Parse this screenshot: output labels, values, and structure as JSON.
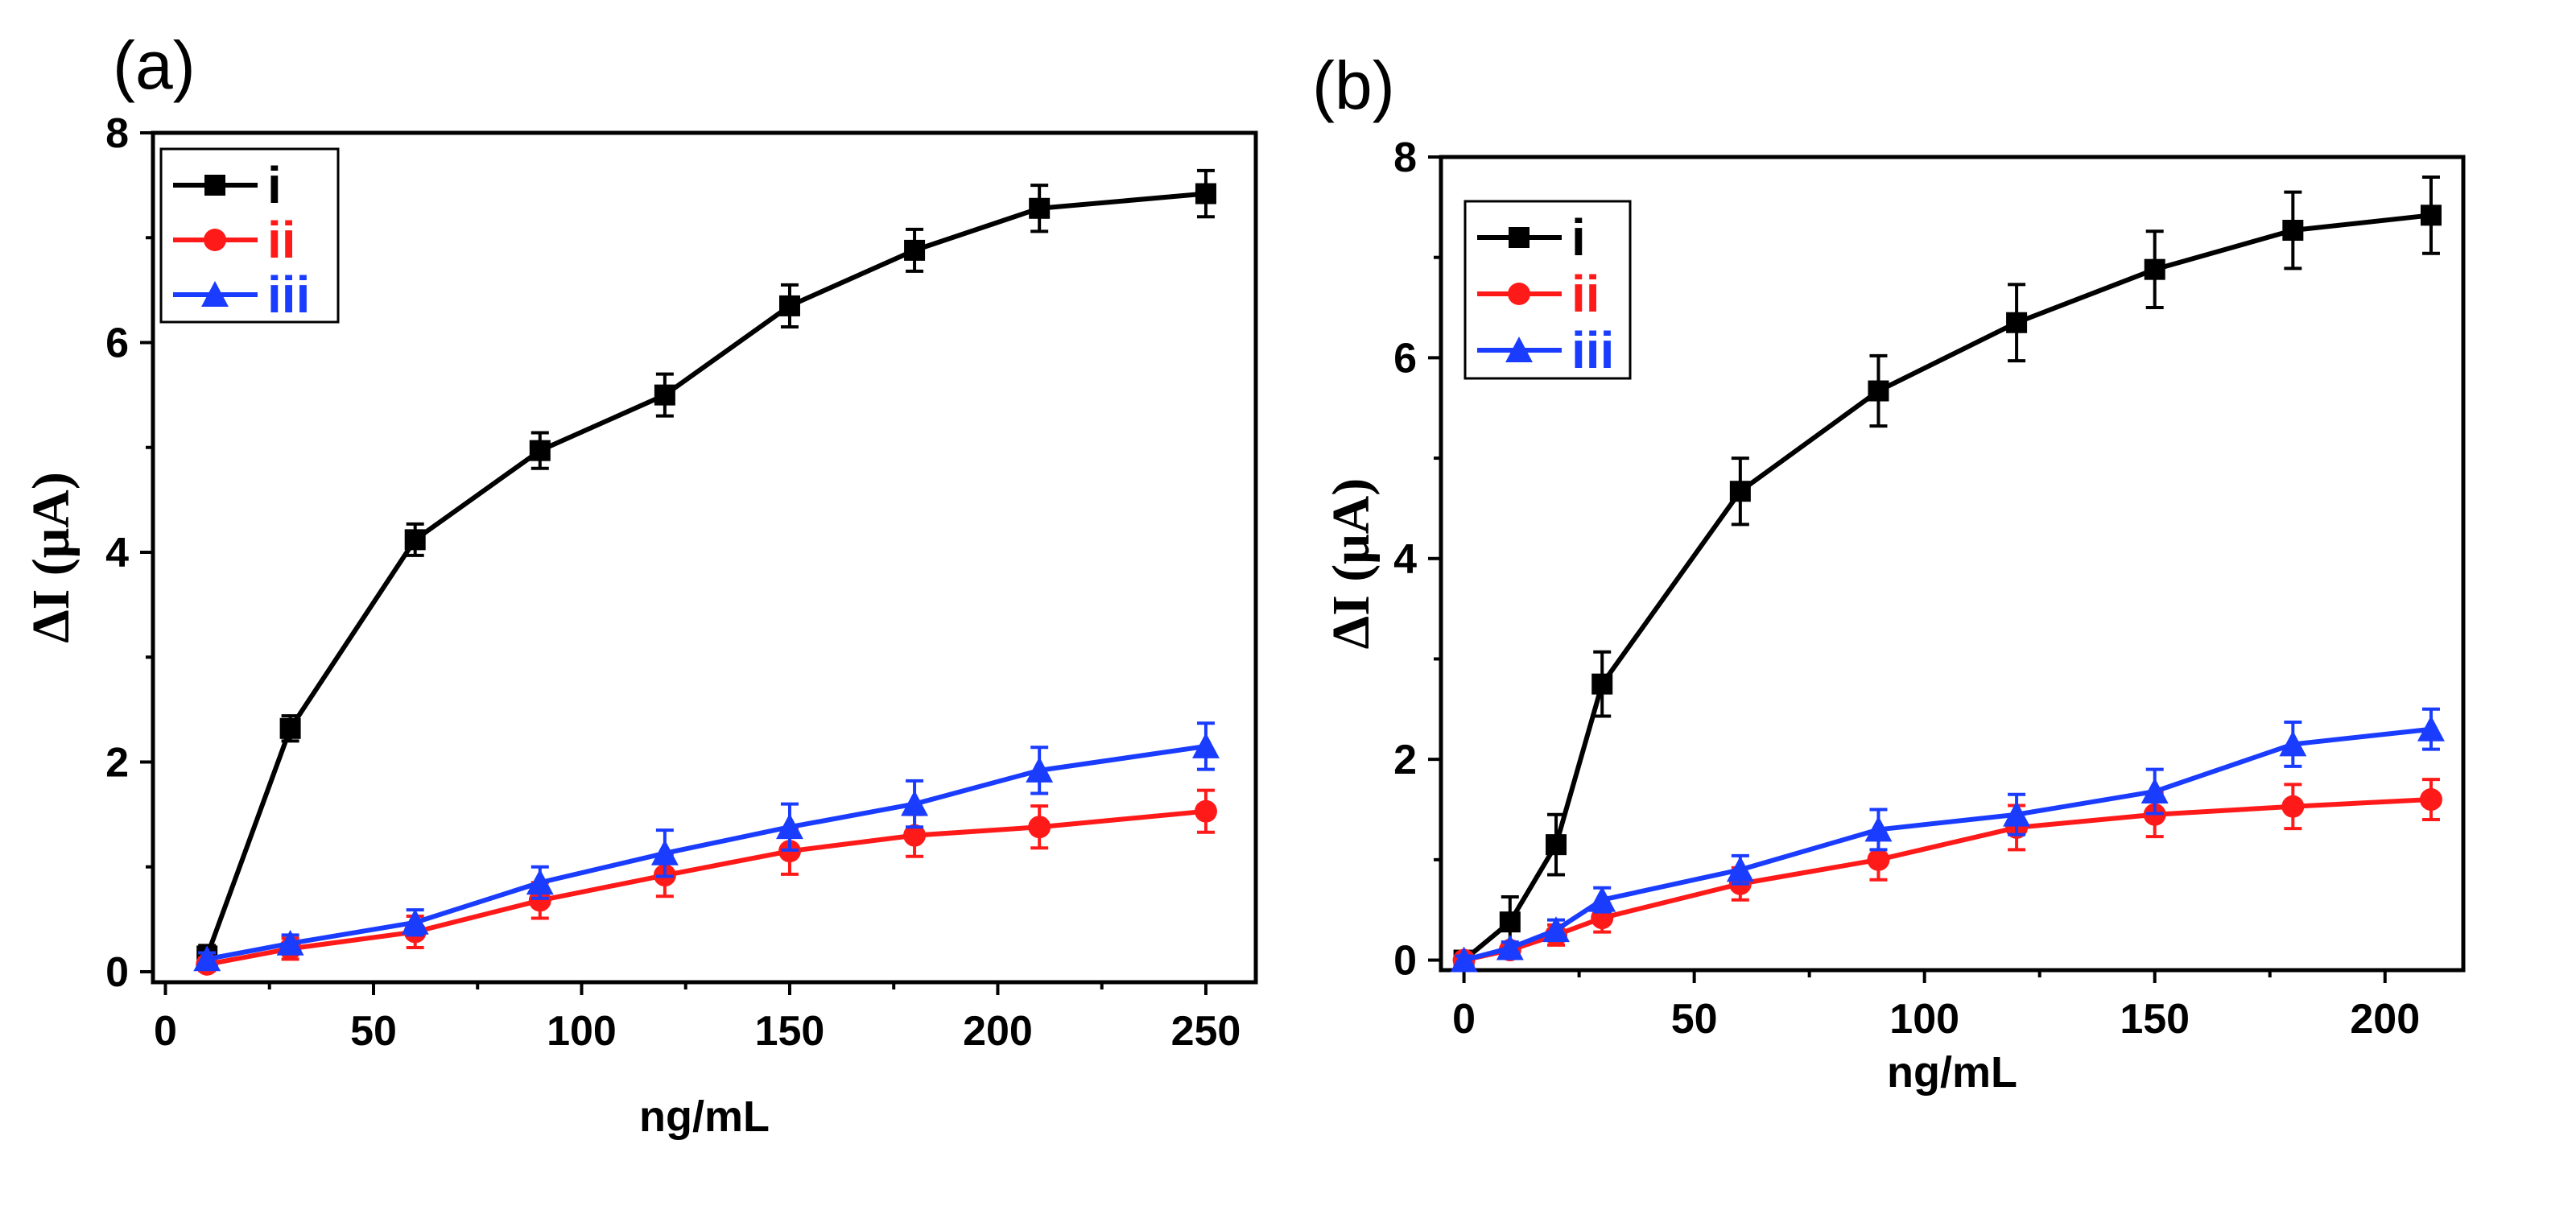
{
  "chart_data": [
    {
      "panel": "(a)",
      "type": "line",
      "xlabel": "ng/mL",
      "ylabel": "ΔI (μA)",
      "xlim": [
        -3,
        262
      ],
      "ylim": [
        -0.1,
        8
      ],
      "xticks": [
        0,
        50,
        100,
        150,
        200,
        250
      ],
      "yticks": [
        0,
        2,
        4,
        6,
        8
      ],
      "legend": "top-left",
      "series": [
        {
          "name": "i",
          "color": "#000000",
          "marker": "square",
          "x": [
            10,
            30,
            60,
            90,
            120,
            150,
            180,
            210,
            250
          ],
          "y": [
            0.15,
            2.32,
            4.12,
            4.97,
            5.5,
            6.35,
            6.88,
            7.28,
            7.42
          ],
          "err": [
            0.1,
            0.12,
            0.15,
            0.17,
            0.2,
            0.2,
            0.2,
            0.22,
            0.22
          ]
        },
        {
          "name": "ii",
          "color": "#ff1a1a",
          "marker": "circle",
          "x": [
            10,
            30,
            60,
            90,
            120,
            150,
            180,
            210,
            250
          ],
          "y": [
            0.07,
            0.22,
            0.38,
            0.68,
            0.92,
            1.15,
            1.3,
            1.38,
            1.53
          ],
          "err": [
            0.06,
            0.1,
            0.15,
            0.17,
            0.2,
            0.22,
            0.2,
            0.2,
            0.2
          ]
        },
        {
          "name": "iii",
          "color": "#1a3cff",
          "marker": "triangle",
          "x": [
            10,
            30,
            60,
            90,
            120,
            150,
            180,
            210,
            250
          ],
          "y": [
            0.12,
            0.27,
            0.47,
            0.85,
            1.13,
            1.38,
            1.6,
            1.92,
            2.15
          ],
          "err": [
            0.06,
            0.08,
            0.12,
            0.15,
            0.22,
            0.22,
            0.22,
            0.22,
            0.22
          ]
        }
      ]
    },
    {
      "panel": "(b)",
      "type": "line",
      "xlabel": "ng/mL",
      "ylabel": "ΔI (μA)",
      "xlim": [
        -5,
        217
      ],
      "ylim": [
        -0.1,
        8
      ],
      "xticks": [
        0,
        50,
        100,
        150,
        200
      ],
      "yticks": [
        0,
        2,
        4,
        6,
        8
      ],
      "legend": "top-left",
      "series": [
        {
          "name": "i",
          "color": "#000000",
          "marker": "square",
          "x": [
            0,
            10,
            20,
            30,
            60,
            90,
            120,
            150,
            180,
            210
          ],
          "y": [
            0.0,
            0.38,
            1.15,
            2.75,
            4.67,
            5.67,
            6.35,
            6.88,
            7.27,
            7.42
          ],
          "err": [
            0.05,
            0.25,
            0.3,
            0.32,
            0.33,
            0.35,
            0.38,
            0.38,
            0.38,
            0.38
          ]
        },
        {
          "name": "ii",
          "color": "#ff1a1a",
          "marker": "circle",
          "x": [
            0,
            10,
            20,
            30,
            60,
            90,
            120,
            150,
            180,
            210
          ],
          "y": [
            0.0,
            0.1,
            0.25,
            0.42,
            0.76,
            1.0,
            1.32,
            1.45,
            1.53,
            1.6
          ],
          "err": [
            0.04,
            0.07,
            0.1,
            0.14,
            0.16,
            0.2,
            0.22,
            0.22,
            0.22,
            0.2
          ]
        },
        {
          "name": "iii",
          "color": "#1a3cff",
          "marker": "triangle",
          "x": [
            0,
            10,
            20,
            30,
            60,
            90,
            120,
            150,
            180,
            210
          ],
          "y": [
            0.0,
            0.12,
            0.3,
            0.6,
            0.9,
            1.3,
            1.45,
            1.68,
            2.15,
            2.3
          ],
          "err": [
            0.04,
            0.06,
            0.1,
            0.12,
            0.14,
            0.2,
            0.2,
            0.22,
            0.22,
            0.2
          ]
        }
      ]
    }
  ]
}
